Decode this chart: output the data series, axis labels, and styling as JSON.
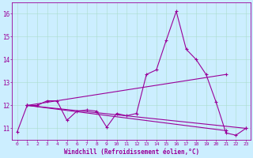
{
  "xlabel": "Windchill (Refroidissement éolien,°C)",
  "background_color": "#cceeff",
  "line_color": "#990099",
  "xlim": [
    -0.5,
    23.5
  ],
  "ylim": [
    10.5,
    16.5
  ],
  "yticks": [
    11,
    12,
    13,
    14,
    15,
    16
  ],
  "xticks": [
    0,
    1,
    2,
    3,
    4,
    5,
    6,
    7,
    8,
    9,
    10,
    11,
    12,
    13,
    14,
    15,
    16,
    17,
    18,
    19,
    20,
    21,
    22,
    23
  ],
  "series1_x": [
    0,
    1,
    2,
    3,
    4,
    5,
    6,
    7,
    8,
    9,
    10,
    11,
    12,
    13,
    14,
    15,
    16,
    17,
    18,
    19,
    20,
    21,
    22,
    23
  ],
  "series1_y": [
    10.85,
    12.0,
    12.0,
    12.2,
    12.2,
    11.35,
    11.75,
    11.8,
    11.75,
    11.05,
    11.65,
    11.55,
    11.65,
    13.35,
    13.55,
    14.85,
    16.1,
    14.45,
    14.0,
    13.35,
    12.15,
    10.8,
    10.7,
    11.0
  ],
  "series2_x": [
    1,
    21
  ],
  "series2_y": [
    12.0,
    13.35
  ],
  "series3_x": [
    1,
    23
  ],
  "series3_y": [
    12.0,
    11.0
  ],
  "series4_x": [
    1,
    21
  ],
  "series4_y": [
    12.0,
    10.9
  ]
}
